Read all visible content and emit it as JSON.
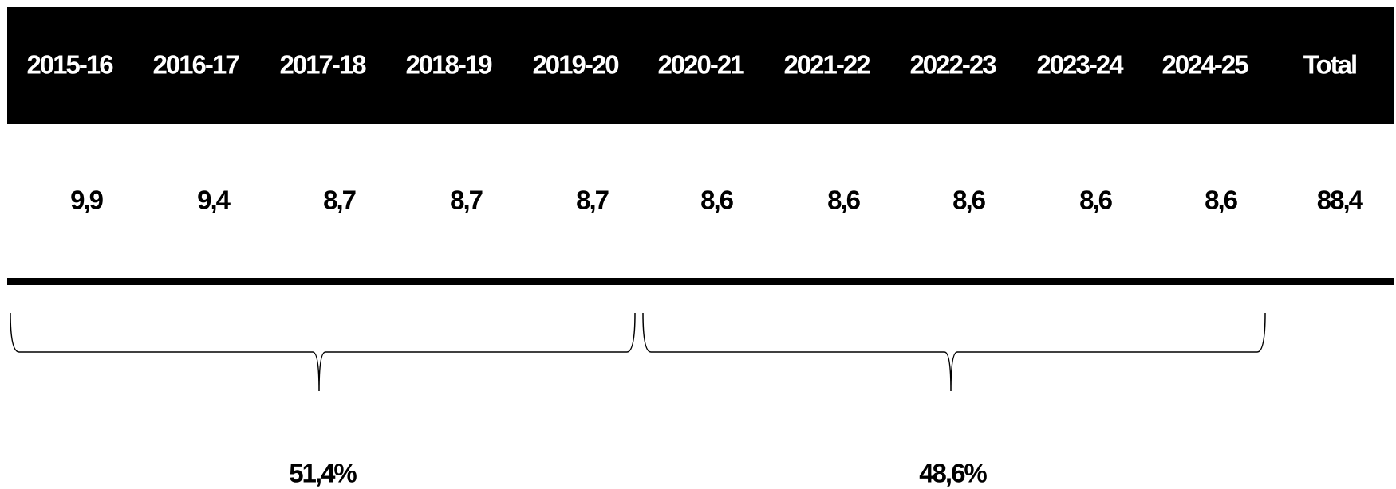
{
  "table": {
    "header": [
      "2015-16",
      "2016-17",
      "2017-18",
      "2018-19",
      "2019-20",
      "2020-21",
      "2021-22",
      "2022-23",
      "2023-24",
      "2024-25",
      "Total"
    ],
    "rows": [
      [
        "9,9",
        "9,4",
        "8,7",
        "8,7",
        "8,7",
        "8,6",
        "8,6",
        "8,6",
        "8,6",
        "8,6",
        "88,4"
      ]
    ]
  },
  "groups": [
    {
      "label": "51,4%"
    },
    {
      "label": "48,6%"
    }
  ]
}
